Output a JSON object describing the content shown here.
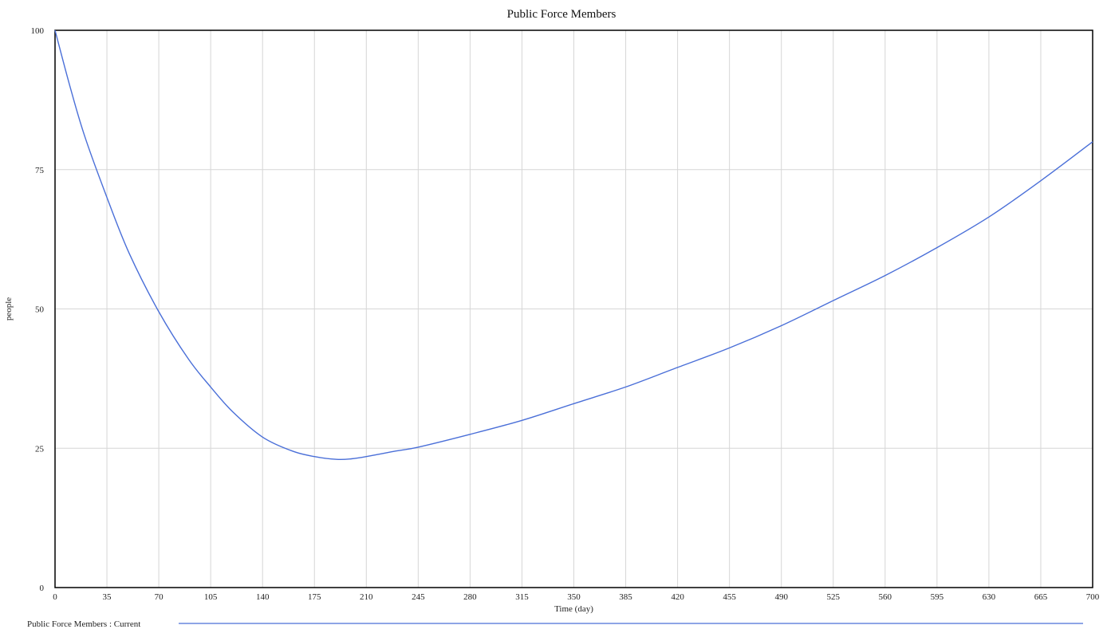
{
  "chart_data": {
    "type": "line",
    "title": "Public Force Members",
    "xlabel": "Time (day)",
    "ylabel": "people",
    "xlim": [
      0,
      700
    ],
    "ylim": [
      0,
      100
    ],
    "x_ticks": [
      "0",
      "35",
      "70",
      "105",
      "140",
      "175",
      "210",
      "245",
      "280",
      "315",
      "350",
      "385",
      "420",
      "455",
      "490",
      "525",
      "560",
      "595",
      "630",
      "665",
      "700"
    ],
    "y_ticks": [
      "0",
      "25",
      "50",
      "75",
      "100"
    ],
    "grid": true,
    "legend": "bottom-left",
    "series": [
      {
        "name": "Public Force Members : Current",
        "color": "#4a6fd8",
        "x": [
          0,
          10,
          20,
          35,
          50,
          70,
          90,
          105,
          120,
          140,
          160,
          175,
          190,
          200,
          210,
          230,
          245,
          280,
          315,
          350,
          385,
          420,
          455,
          490,
          525,
          560,
          595,
          630,
          665,
          700
        ],
        "y": [
          100,
          90,
          81,
          70,
          60,
          49.5,
          41,
          36,
          31.5,
          27,
          24.5,
          23.5,
          23,
          23.1,
          23.5,
          24.5,
          25.2,
          27.5,
          30,
          33,
          36,
          39.5,
          43,
          47,
          51.5,
          56,
          61,
          66.5,
          73,
          80
        ]
      }
    ]
  }
}
